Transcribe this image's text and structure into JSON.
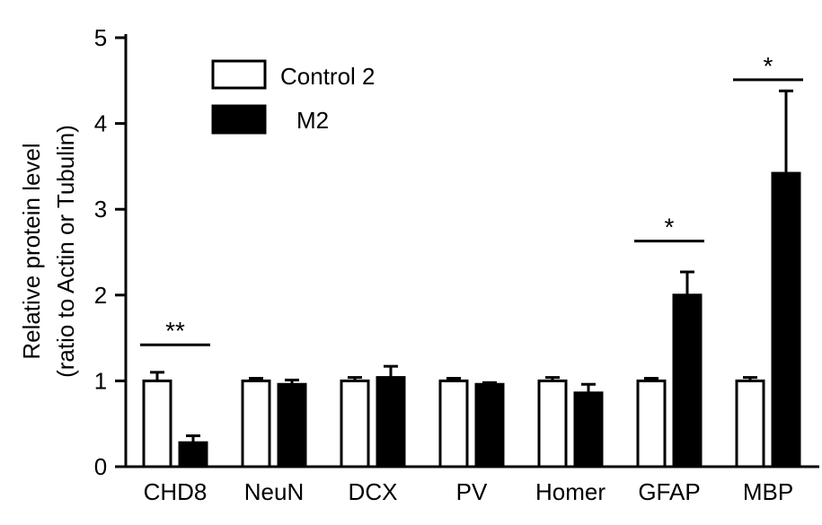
{
  "chart_data": {
    "type": "bar",
    "categories": [
      "CHD8",
      "NeuN",
      "DCX",
      "PV",
      "Homer",
      "GFAP",
      "MBP"
    ],
    "series": [
      {
        "name": "Control 2",
        "values": [
          1.0,
          1.0,
          1.0,
          1.0,
          1.0,
          1.0,
          1.0
        ],
        "errors": [
          0.1,
          0.03,
          0.04,
          0.03,
          0.04,
          0.03,
          0.04
        ],
        "fill": "#ffffff",
        "stroke": "#000000"
      },
      {
        "name": "M2",
        "values": [
          0.28,
          0.96,
          1.04,
          0.96,
          0.86,
          2.0,
          3.42
        ],
        "errors": [
          0.08,
          0.05,
          0.13,
          0.02,
          0.1,
          0.27,
          0.96
        ],
        "fill": "#000000",
        "stroke": "#000000"
      }
    ],
    "ylabel_line1": "Relative protein level",
    "ylabel_line2": "(ratio to Actin or Tubulin)",
    "xlabel": "",
    "ylim": [
      0,
      5
    ],
    "yticks": [
      "0",
      "1",
      "2",
      "3",
      "4",
      "5"
    ],
    "grid": false,
    "legend": {
      "position": "top-left",
      "entries": [
        "Control 2",
        "M2"
      ]
    },
    "significance": [
      {
        "category": "CHD8",
        "label": "**",
        "y": 1.42
      },
      {
        "category": "GFAP",
        "label": "*",
        "y": 2.63
      },
      {
        "category": "MBP",
        "label": "*",
        "y": 4.51
      }
    ]
  }
}
